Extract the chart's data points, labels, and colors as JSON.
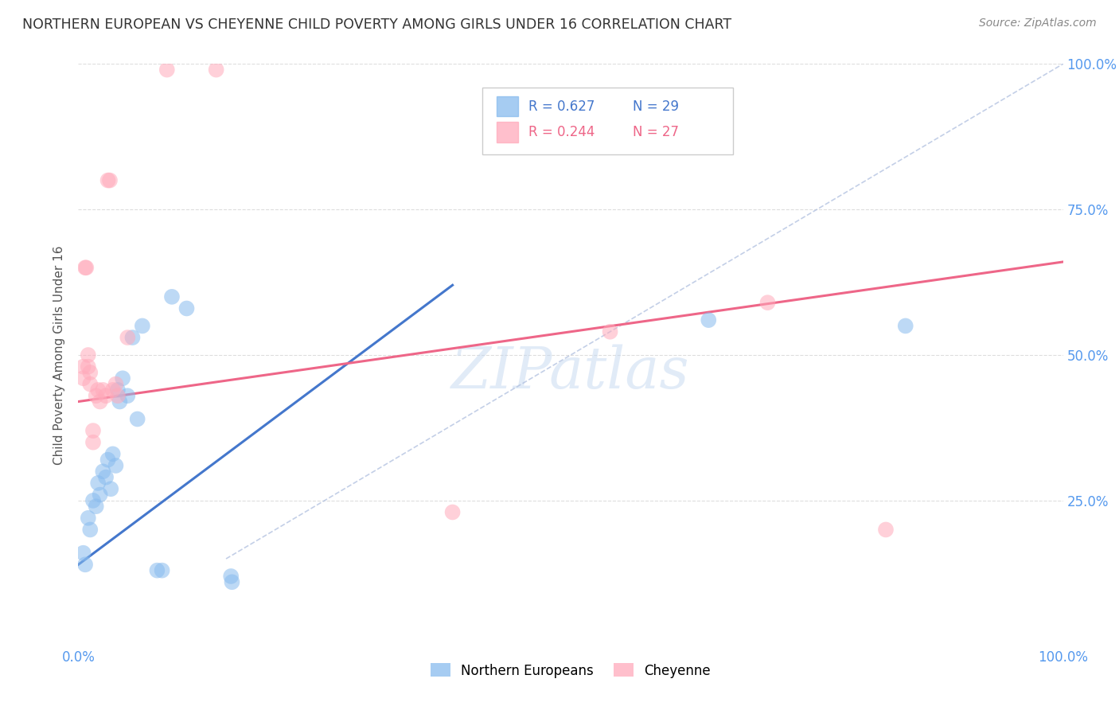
{
  "title": "NORTHERN EUROPEAN VS CHEYENNE CHILD POVERTY AMONG GIRLS UNDER 16 CORRELATION CHART",
  "source": "Source: ZipAtlas.com",
  "ylabel": "Child Poverty Among Girls Under 16",
  "xlim": [
    0,
    1
  ],
  "ylim": [
    0,
    1
  ],
  "blue_R": "0.627",
  "blue_N": "29",
  "pink_R": "0.244",
  "pink_N": "27",
  "blue_color": "#88BBEE",
  "pink_color": "#FFAABB",
  "blue_line_color": "#4477CC",
  "pink_line_color": "#EE6688",
  "blue_scatter": [
    [
      0.005,
      0.16
    ],
    [
      0.007,
      0.14
    ],
    [
      0.01,
      0.22
    ],
    [
      0.015,
      0.25
    ],
    [
      0.018,
      0.24
    ],
    [
      0.02,
      0.28
    ],
    [
      0.022,
      0.26
    ],
    [
      0.025,
      0.3
    ],
    [
      0.028,
      0.29
    ],
    [
      0.03,
      0.32
    ],
    [
      0.033,
      0.27
    ],
    [
      0.035,
      0.33
    ],
    [
      0.038,
      0.31
    ],
    [
      0.04,
      0.44
    ],
    [
      0.042,
      0.42
    ],
    [
      0.045,
      0.46
    ],
    [
      0.05,
      0.43
    ],
    [
      0.055,
      0.53
    ],
    [
      0.06,
      0.39
    ],
    [
      0.065,
      0.55
    ],
    [
      0.08,
      0.13
    ],
    [
      0.085,
      0.13
    ],
    [
      0.095,
      0.6
    ],
    [
      0.11,
      0.58
    ],
    [
      0.155,
      0.12
    ],
    [
      0.156,
      0.11
    ],
    [
      0.64,
      0.56
    ],
    [
      0.84,
      0.55
    ],
    [
      0.012,
      0.2
    ]
  ],
  "pink_scatter": [
    [
      0.005,
      0.46
    ],
    [
      0.007,
      0.65
    ],
    [
      0.008,
      0.65
    ],
    [
      0.01,
      0.48
    ],
    [
      0.01,
      0.5
    ],
    [
      0.012,
      0.45
    ],
    [
      0.015,
      0.35
    ],
    [
      0.015,
      0.37
    ],
    [
      0.018,
      0.43
    ],
    [
      0.02,
      0.44
    ],
    [
      0.022,
      0.42
    ],
    [
      0.025,
      0.44
    ],
    [
      0.028,
      0.43
    ],
    [
      0.03,
      0.8
    ],
    [
      0.032,
      0.8
    ],
    [
      0.035,
      0.44
    ],
    [
      0.038,
      0.45
    ],
    [
      0.04,
      0.43
    ],
    [
      0.05,
      0.53
    ],
    [
      0.09,
      0.99
    ],
    [
      0.14,
      0.99
    ],
    [
      0.38,
      0.23
    ],
    [
      0.54,
      0.54
    ],
    [
      0.7,
      0.59
    ],
    [
      0.82,
      0.2
    ],
    [
      0.005,
      0.48
    ],
    [
      0.012,
      0.47
    ]
  ],
  "blue_line_x": [
    0.0,
    0.38
  ],
  "blue_line_y": [
    0.14,
    0.62
  ],
  "pink_line_x": [
    0.0,
    1.0
  ],
  "pink_line_y": [
    0.42,
    0.66
  ],
  "diagonal_line_x": [
    0.15,
    1.0
  ],
  "diagonal_line_y": [
    0.15,
    1.0
  ],
  "watermark": "ZIPatlas",
  "background_color": "#ffffff",
  "grid_color": "#dddddd",
  "ytick_positions": [
    0.0,
    0.25,
    0.5,
    0.75,
    1.0
  ],
  "ytick_labels": [
    "",
    "25.0%",
    "50.0%",
    "75.0%",
    "100.0%"
  ],
  "xtick_positions": [
    0.0,
    0.2,
    0.4,
    0.6,
    0.8,
    1.0
  ],
  "xtick_labels": [
    "0.0%",
    "",
    "",
    "",
    "",
    "100.0%"
  ]
}
